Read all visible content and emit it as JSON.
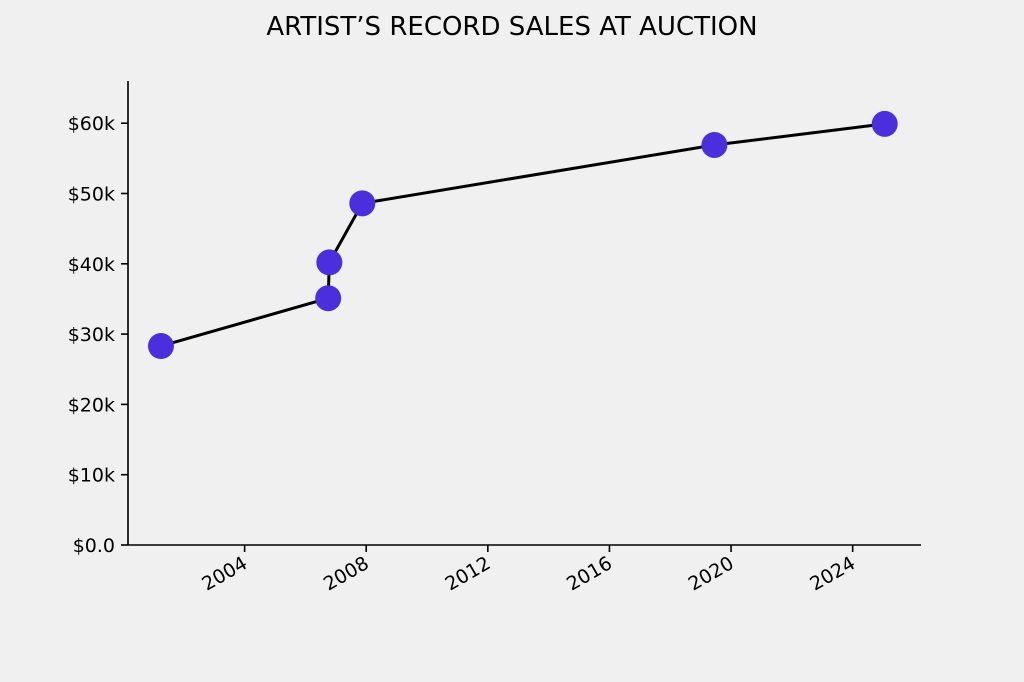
{
  "chart_data": {
    "type": "line",
    "title": "ARTIST’S RECORD SALES AT AUCTION",
    "xlabel": "",
    "ylabel": "",
    "x": [
      "2001-04-01",
      "2006-10-01",
      "2006-10-15",
      "2007-11-15",
      "2019-06-15",
      "2025-01-20"
    ],
    "values": [
      28300,
      35100,
      40200,
      48600,
      56900,
      59900
    ],
    "ylim": [
      0,
      66000
    ],
    "xlim": [
      "2000-03-01",
      "2026-04-01"
    ],
    "x_tick_labels": [
      "2004",
      "2008",
      "2012",
      "2016",
      "2020",
      "2024"
    ],
    "y_ticks": [
      0,
      10000,
      20000,
      30000,
      40000,
      50000,
      60000
    ],
    "y_tick_labels": [
      "$0.0",
      "$10k",
      "$20k",
      "$30k",
      "$40k",
      "$50k",
      "$60k"
    ],
    "marker_color": "#4b2fdc",
    "line_color": "#000000",
    "grid": false
  }
}
